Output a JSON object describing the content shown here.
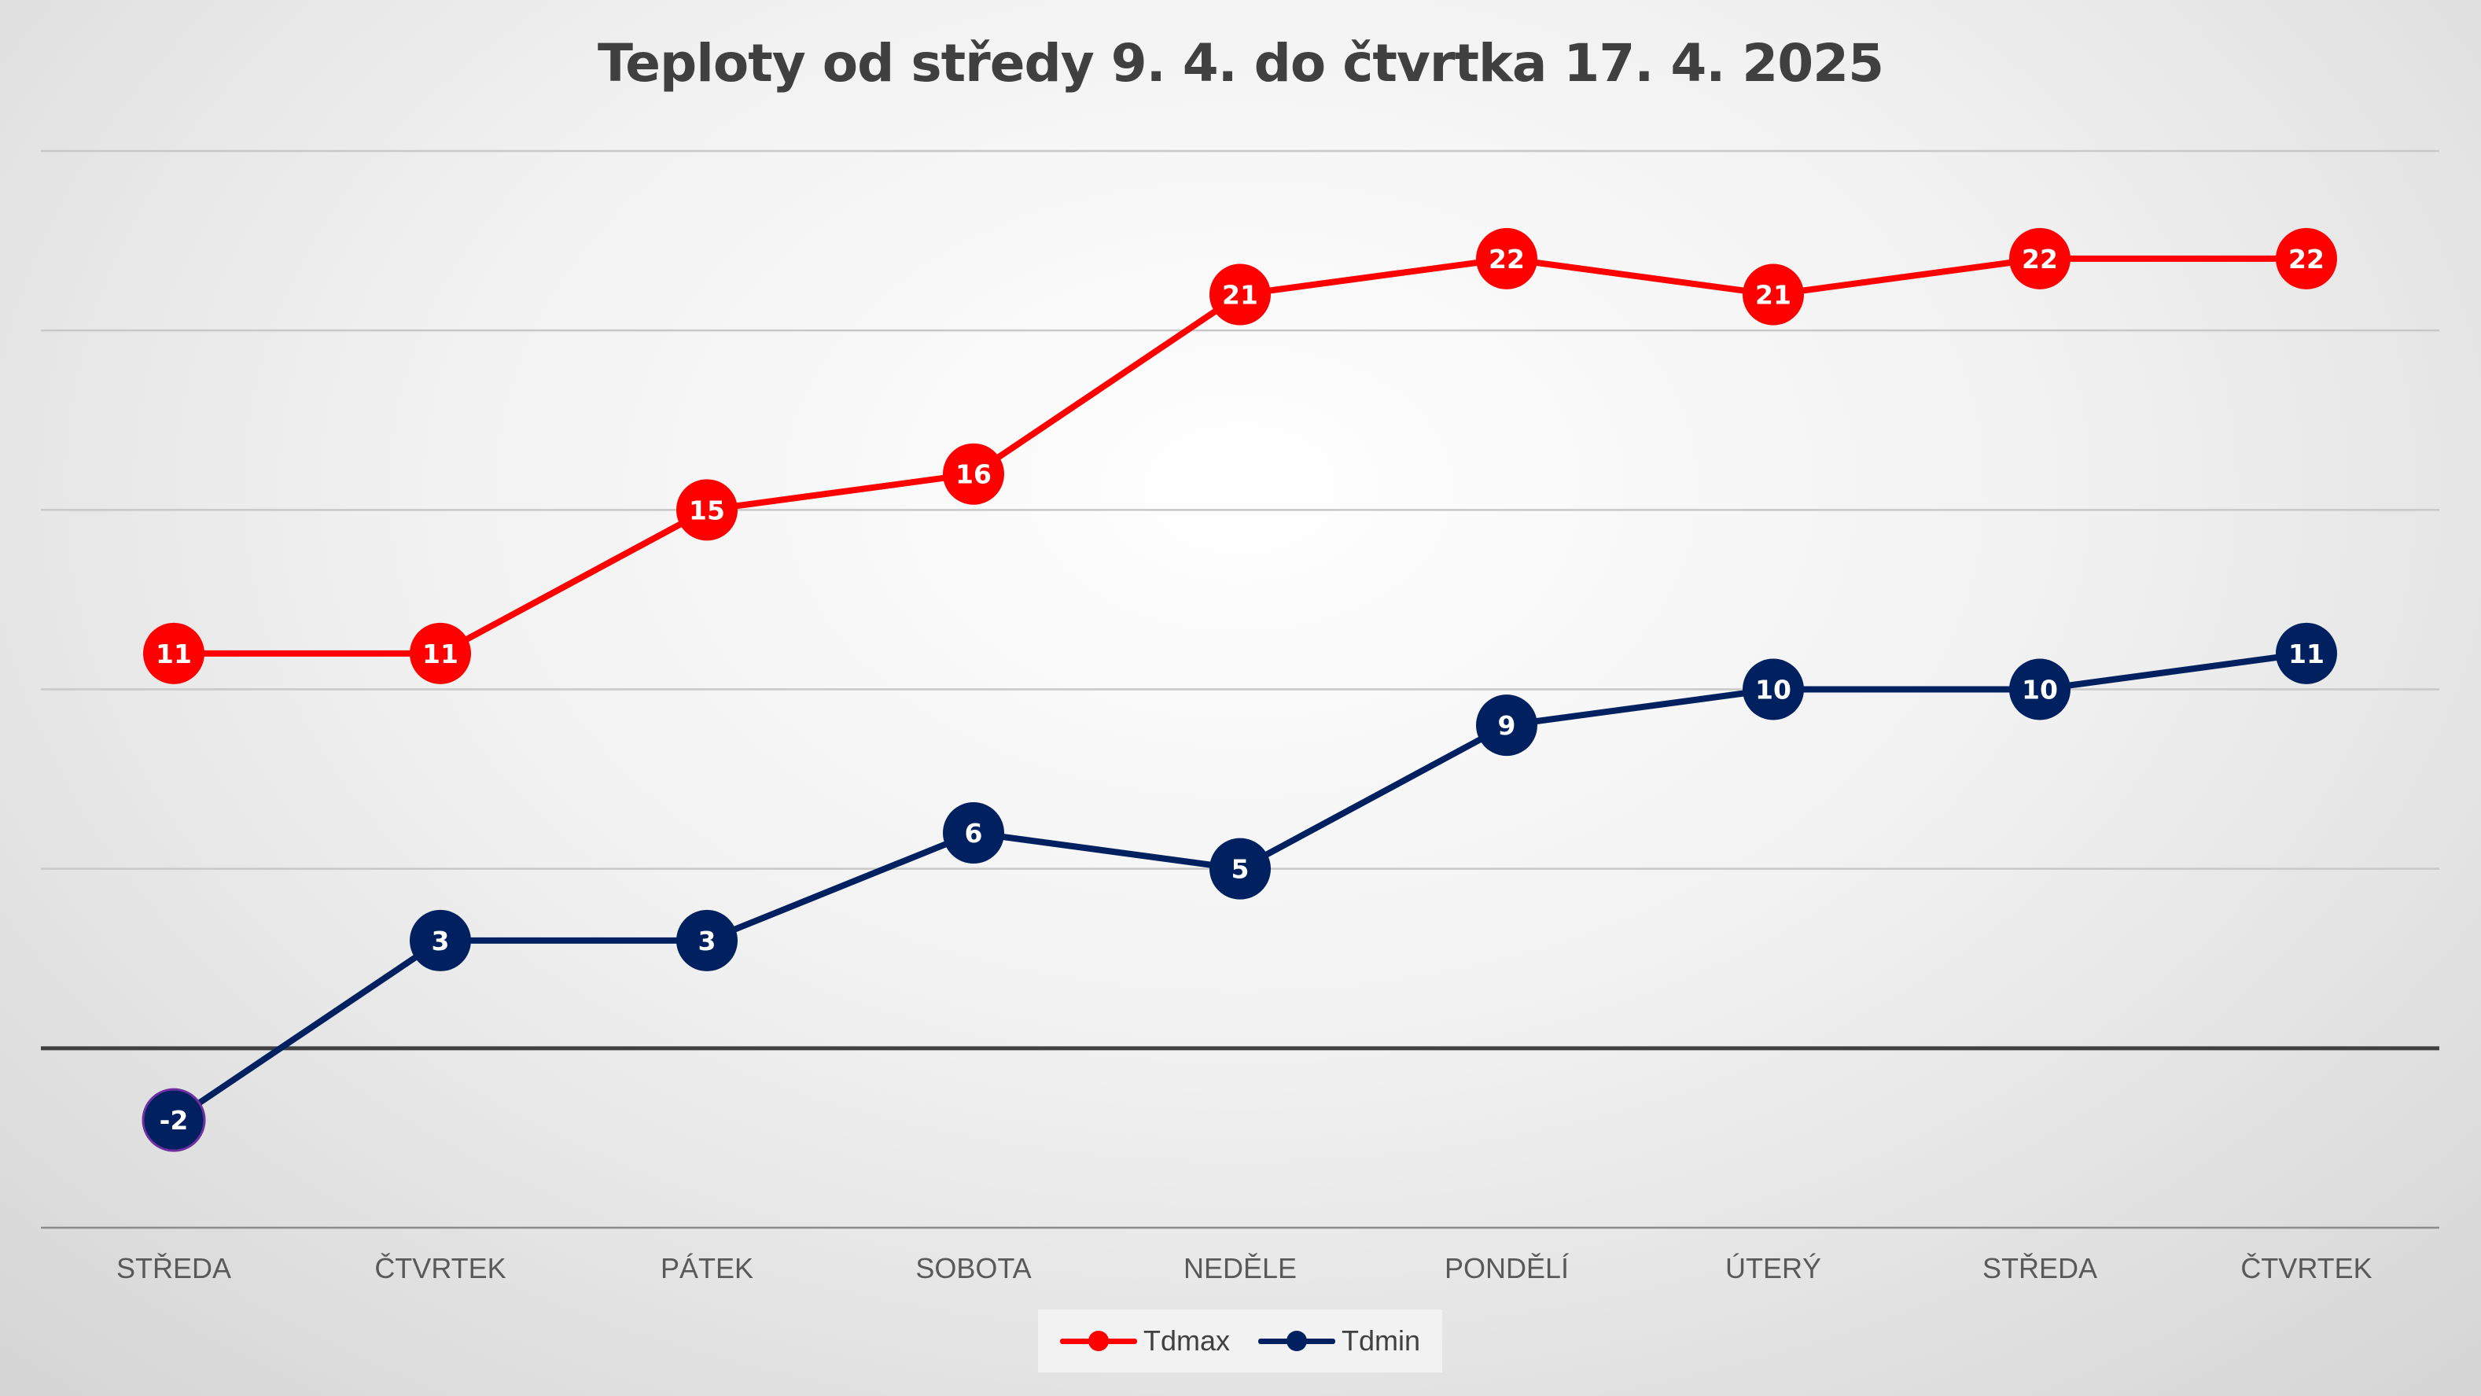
{
  "chart_data": {
    "type": "line",
    "title": "Teploty od středy 9. 4. do čtvrtka 17. 4. 2025",
    "categories": [
      "STŘEDA",
      "ČTVRTEK",
      "PÁTEK",
      "SOBOTA",
      "NEDĚLE",
      "PONDĚLÍ",
      "ÚTERÝ",
      "STŘEDA",
      "ČTVRTEK"
    ],
    "series": [
      {
        "name": "Tdmax",
        "color": "#ff0000",
        "values": [
          11,
          11,
          15,
          16,
          21,
          22,
          21,
          22,
          22
        ]
      },
      {
        "name": "Tdmin",
        "color": "#002060",
        "values": [
          -2,
          3,
          3,
          6,
          5,
          9,
          10,
          10,
          11
        ]
      }
    ],
    "ylim": [
      -5,
      25
    ],
    "y_gridlines": [
      -5,
      0,
      5,
      10,
      15,
      20,
      25
    ],
    "zero_line": true,
    "y_tick_labels_shown": false,
    "grid": true,
    "legend_position": "bottom",
    "data_labels": true
  }
}
